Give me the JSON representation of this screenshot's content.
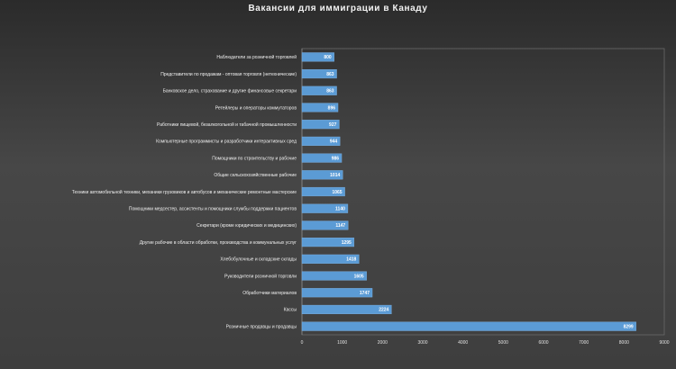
{
  "chart_data": {
    "type": "bar",
    "orientation": "horizontal",
    "title": "Вакансии для иммиграции в Канаду",
    "xlabel": "",
    "ylabel": "",
    "xlim": [
      0,
      9000
    ],
    "xticks": [
      0,
      1000,
      2000,
      3000,
      4000,
      5000,
      6000,
      7000,
      8000,
      9000
    ],
    "grid": false,
    "legend": "none",
    "bar_color": "#5b9bd5",
    "categories": [
      "Наблюдатели за розничной торговлей",
      "Представители по продажам - оптовая торговля (нетехнические)",
      "Банковское дело, страхование и другие финансовые секретари",
      "Ретейлеры и операторы коммутаторов",
      "Работники пищевой, безалкогольной и табачной промышленности",
      "Компьютерные программисты и разработчики интерактивных сред",
      "Помощники по строительству и рабочие",
      "Общие сельскохозяйственные рабочие",
      "Техники автомобильной техники, механики грузовиков и автобусов и механические ремонтные мастерские",
      "Помощники медсестер, ассистенты и помощники службы поддержки пациентов",
      "Секретари (кроме юридических и медицинских)",
      "Другие рабочие в области обработки, производства и коммунальных услуг",
      "Хлебобулочные и складские склады",
      "Руководители розничной торговли",
      "Обработчики материалов",
      "Кассы",
      "Розничные продавцы и продавцы"
    ],
    "values": [
      800,
      863,
      863,
      896,
      927,
      944,
      986,
      1014,
      1065,
      1140,
      1147,
      1295,
      1418,
      1605,
      1747,
      2224,
      8299
    ]
  }
}
